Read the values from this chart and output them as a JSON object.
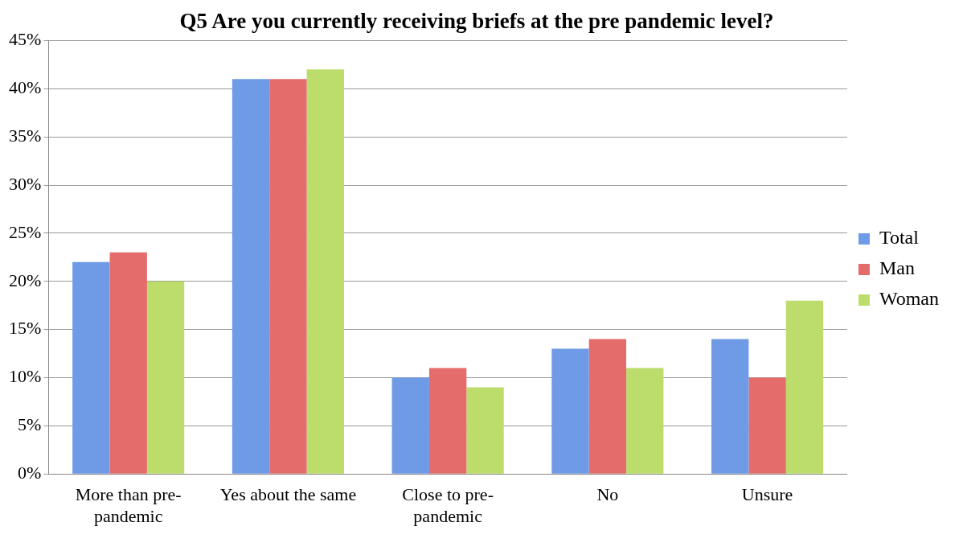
{
  "chart_data": {
    "type": "bar",
    "title": "Q5 Are you currently receiving briefs at the pre pandemic level?",
    "categories": [
      "More than pre-pandemic",
      "Yes about the same",
      "Close to pre-pandemic",
      "No",
      "Unsure"
    ],
    "series": [
      {
        "name": "Total",
        "color": "#6f9be6",
        "values": [
          22,
          41,
          10,
          13,
          14
        ]
      },
      {
        "name": "Man",
        "color": "#e46c6a",
        "values": [
          23,
          41,
          11,
          14,
          10
        ]
      },
      {
        "name": "Woman",
        "color": "#bcdc6c",
        "values": [
          20,
          42,
          9,
          11,
          18
        ]
      }
    ],
    "ylim": [
      0,
      45
    ],
    "yticks": [
      {
        "value": 0,
        "label": "0%"
      },
      {
        "value": 5,
        "label": "5%"
      },
      {
        "value": 10,
        "label": "10%"
      },
      {
        "value": 15,
        "label": "15%"
      },
      {
        "value": 20,
        "label": "20%"
      },
      {
        "value": 25,
        "label": "25%"
      },
      {
        "value": 30,
        "label": "30%"
      },
      {
        "value": 35,
        "label": "35%"
      },
      {
        "value": 40,
        "label": "40%"
      },
      {
        "value": 45,
        "label": "45%"
      }
    ],
    "grid": "y",
    "legend": "right"
  }
}
